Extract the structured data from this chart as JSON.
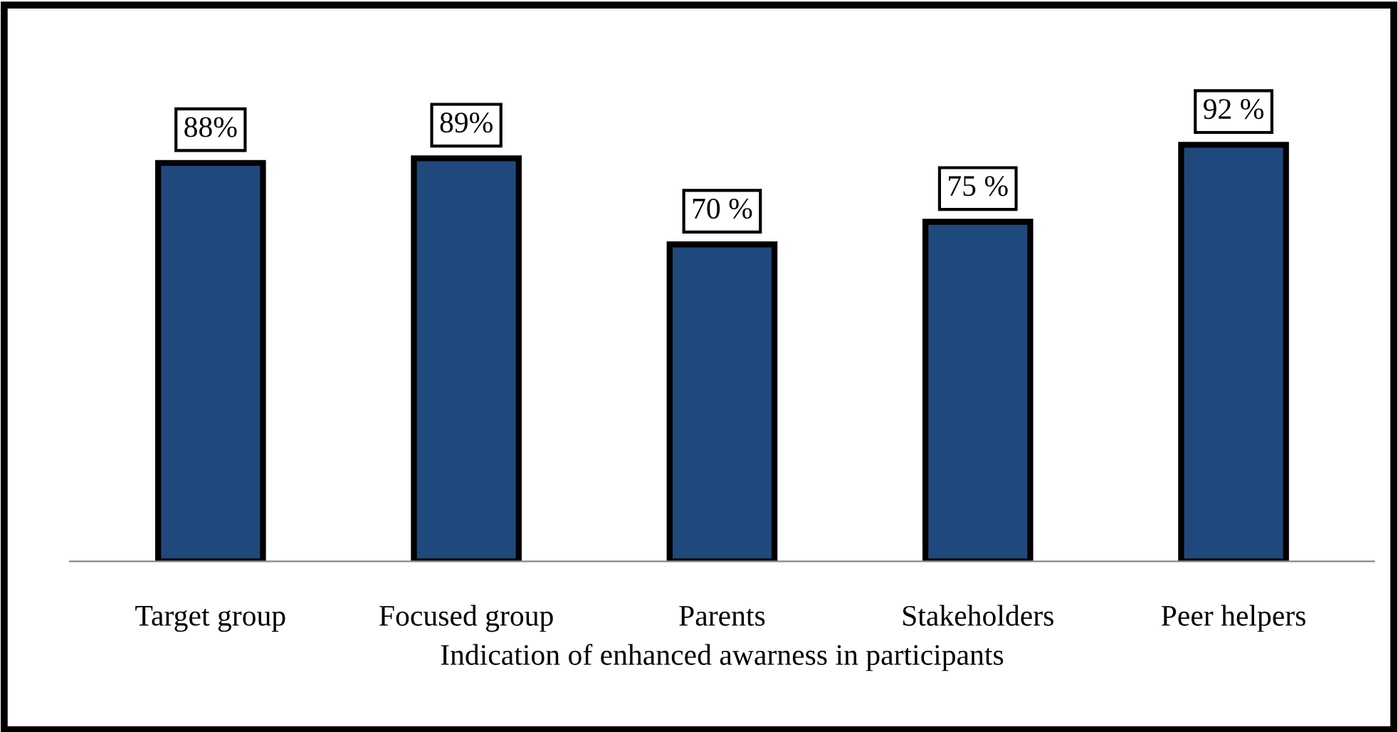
{
  "chart_data": {
    "type": "bar",
    "xlabel": "Indication of enhanced awarness in participants",
    "categories": [
      "Target group",
      "Focused group",
      "Parents",
      "Stakeholders",
      "Peer helpers"
    ],
    "values": [
      88,
      89,
      70,
      75,
      92
    ],
    "value_labels": [
      "88%",
      "89%",
      "70 %",
      "75 %",
      "92 %"
    ],
    "color": "#1f497d",
    "grid": false,
    "legend": false
  }
}
